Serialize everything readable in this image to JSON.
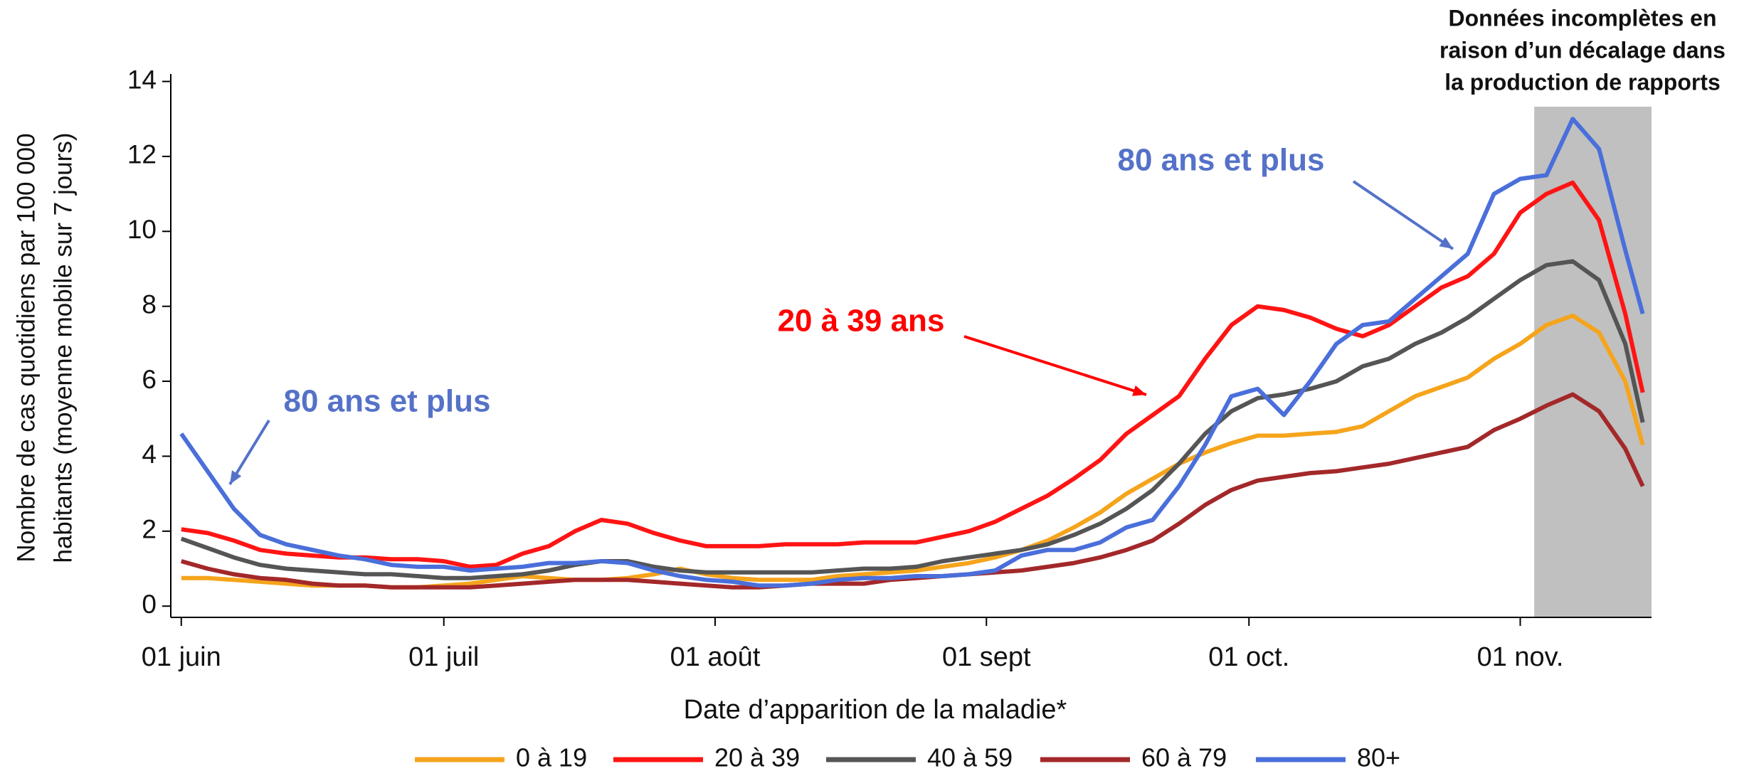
{
  "chart_data": {
    "type": "line",
    "x_label": "Date d’apparition de la maladie*",
    "y_label": [
      "Nombre de cas quotidiens par 100 000",
      "habitants (moyenne mobile sur 7 jours)"
    ],
    "x": [
      0,
      3,
      6,
      9,
      12,
      15,
      18,
      21,
      24,
      27,
      30,
      33,
      36,
      39,
      42,
      45,
      48,
      51,
      54,
      57,
      60,
      63,
      66,
      69,
      72,
      75,
      78,
      81,
      84,
      87,
      90,
      93,
      96,
      99,
      102,
      105,
      108,
      111,
      114,
      117,
      120,
      123,
      126,
      129,
      132,
      135,
      138,
      141,
      144,
      147,
      150,
      153,
      156,
      159,
      162,
      165,
      167
    ],
    "xlim": [
      -1.2,
      168
    ],
    "xticks": [
      {
        "value": 0,
        "label": "01 juin"
      },
      {
        "value": 30,
        "label": "01 juil"
      },
      {
        "value": 61,
        "label": "01 août"
      },
      {
        "value": 92,
        "label": "01 sept"
      },
      {
        "value": 122,
        "label": "01 oct."
      },
      {
        "value": 153,
        "label": "01 nov."
      }
    ],
    "ylim": [
      -0.3,
      14.2
    ],
    "yticks": [
      0,
      2,
      4,
      6,
      8,
      10,
      12,
      14
    ],
    "series": [
      {
        "name": "0 à 19",
        "color": "#f5a41c",
        "values": [
          0.75,
          0.75,
          0.7,
          0.65,
          0.6,
          0.55,
          0.55,
          0.55,
          0.5,
          0.5,
          0.55,
          0.6,
          0.7,
          0.8,
          0.75,
          0.7,
          0.7,
          0.75,
          0.85,
          1.0,
          0.85,
          0.75,
          0.7,
          0.7,
          0.7,
          0.8,
          0.85,
          0.9,
          0.95,
          1.05,
          1.15,
          1.3,
          1.5,
          1.75,
          2.1,
          2.5,
          3.0,
          3.4,
          3.8,
          4.1,
          4.35,
          4.55,
          4.55,
          4.6,
          4.65,
          4.8,
          5.2,
          5.6,
          5.85,
          6.1,
          6.6,
          7.0,
          7.5,
          7.75,
          7.3,
          6.0,
          4.3
        ]
      },
      {
        "name": "20 à 39",
        "color": "#ff1414",
        "values": [
          2.05,
          1.95,
          1.75,
          1.5,
          1.4,
          1.35,
          1.3,
          1.3,
          1.25,
          1.25,
          1.2,
          1.05,
          1.1,
          1.4,
          1.6,
          2.0,
          2.3,
          2.2,
          1.95,
          1.75,
          1.6,
          1.6,
          1.6,
          1.65,
          1.65,
          1.65,
          1.7,
          1.7,
          1.7,
          1.85,
          2.0,
          2.25,
          2.6,
          2.95,
          3.4,
          3.9,
          4.6,
          5.1,
          5.6,
          6.6,
          7.5,
          8.0,
          7.9,
          7.7,
          7.4,
          7.2,
          7.5,
          8.0,
          8.5,
          8.8,
          9.4,
          10.5,
          11.0,
          11.3,
          10.3,
          7.8,
          5.7
        ]
      },
      {
        "name": "40 à 59",
        "color": "#555555",
        "values": [
          1.8,
          1.55,
          1.3,
          1.1,
          1.0,
          0.95,
          0.9,
          0.85,
          0.85,
          0.8,
          0.75,
          0.75,
          0.8,
          0.85,
          0.95,
          1.1,
          1.2,
          1.2,
          1.05,
          0.95,
          0.9,
          0.9,
          0.9,
          0.9,
          0.9,
          0.95,
          1.0,
          1.0,
          1.05,
          1.2,
          1.3,
          1.4,
          1.5,
          1.65,
          1.9,
          2.2,
          2.6,
          3.1,
          3.8,
          4.6,
          5.2,
          5.55,
          5.65,
          5.8,
          6.0,
          6.4,
          6.6,
          7.0,
          7.3,
          7.7,
          8.2,
          8.7,
          9.1,
          9.2,
          8.7,
          7.0,
          4.9
        ]
      },
      {
        "name": "60 à 79",
        "color": "#a3282a",
        "values": [
          1.2,
          1.0,
          0.85,
          0.75,
          0.7,
          0.6,
          0.55,
          0.55,
          0.5,
          0.5,
          0.5,
          0.5,
          0.55,
          0.6,
          0.65,
          0.7,
          0.7,
          0.7,
          0.65,
          0.6,
          0.55,
          0.5,
          0.5,
          0.55,
          0.6,
          0.6,
          0.6,
          0.7,
          0.75,
          0.8,
          0.85,
          0.9,
          0.95,
          1.05,
          1.15,
          1.3,
          1.5,
          1.75,
          2.2,
          2.7,
          3.1,
          3.35,
          3.45,
          3.55,
          3.6,
          3.7,
          3.8,
          3.95,
          4.1,
          4.25,
          4.7,
          5.0,
          5.35,
          5.65,
          5.2,
          4.2,
          3.2
        ]
      },
      {
        "name": "80+",
        "color": "#4a6fdb",
        "values": [
          4.6,
          3.6,
          2.6,
          1.9,
          1.65,
          1.5,
          1.35,
          1.25,
          1.1,
          1.05,
          1.05,
          0.95,
          1.0,
          1.05,
          1.15,
          1.15,
          1.2,
          1.15,
          0.95,
          0.8,
          0.7,
          0.65,
          0.55,
          0.55,
          0.6,
          0.7,
          0.75,
          0.75,
          0.8,
          0.8,
          0.85,
          0.95,
          1.35,
          1.5,
          1.5,
          1.7,
          2.1,
          2.3,
          3.2,
          4.3,
          5.6,
          5.8,
          5.1,
          6.0,
          7.0,
          7.5,
          7.6,
          8.2,
          8.8,
          9.4,
          11.0,
          11.4,
          11.5,
          13.0,
          12.2,
          9.5,
          7.8
        ]
      }
    ],
    "annotations": [
      {
        "text": "80 ans et plus",
        "color": "#5572c8"
      },
      {
        "text": "20 à 39 ans",
        "color": "#ff0000"
      },
      {
        "text": "80 ans et plus",
        "color": "#5572c8"
      }
    ],
    "shaded_region": {
      "x": [
        154.6,
        168
      ],
      "label": [
        "Données incomplètes en",
        "raison d’un décalage dans",
        "la production de rapports"
      ],
      "color": "#c0c0c0"
    },
    "legend": "bottom"
  }
}
